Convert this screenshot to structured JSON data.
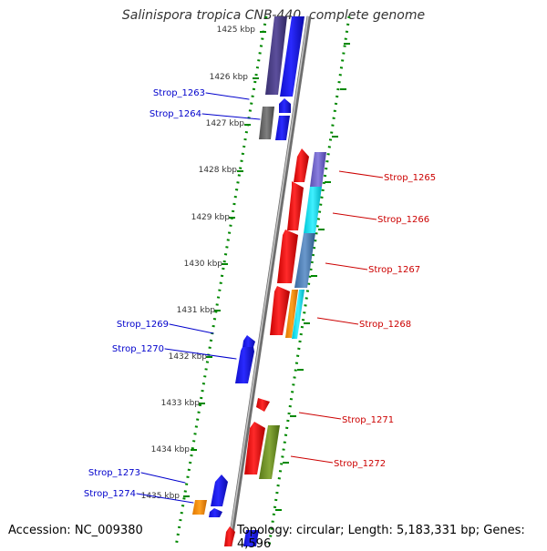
{
  "title": "Salinispora tropica CNB-440, complete genome",
  "accession_text": "Accession: NC_009380",
  "summary_text": "Topology: circular; Length: 5,183,331 bp; Genes: 4,596",
  "colors": {
    "forward_strand": "#ee0000",
    "reverse_strand": "#0000ee",
    "backbone": "#909090",
    "tick_dots": "#008800",
    "tick_label": "#333333"
  },
  "kbp_ticks": [
    "1425 kbp",
    "1426 kbp",
    "1427 kbp",
    "1428 kbp",
    "1429 kbp",
    "1430 kbp",
    "1431 kbp",
    "1432 kbp",
    "1433 kbp",
    "1434 kbp",
    "1435 kbp"
  ],
  "gene_labels": {
    "reverse": [
      "Strop_1263",
      "Strop_1264",
      "Strop_1269",
      "Strop_1270",
      "Strop_1273",
      "Strop_1274"
    ],
    "forward": [
      "Strop_1265",
      "Strop_1266",
      "Strop_1267",
      "Strop_1268",
      "Strop_1271",
      "Strop_1272"
    ]
  },
  "icons": [
    "gene-arrow-icon",
    "backbone-track",
    "tick-dot-track"
  ]
}
